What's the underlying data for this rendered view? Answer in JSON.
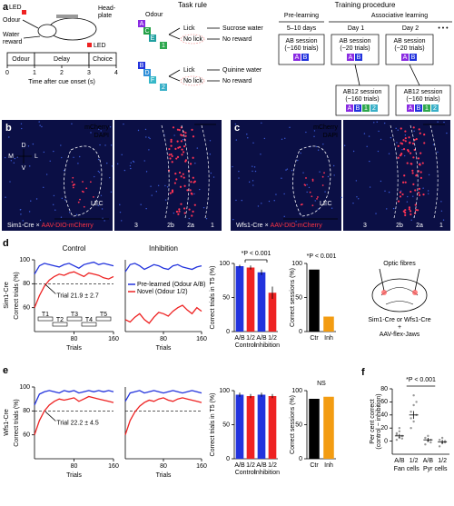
{
  "panel_a": {
    "label": "a",
    "schematic": {
      "led": "LED",
      "odour": "Odour",
      "head_plate": [
        "Head-",
        "plate"
      ],
      "water_reward": [
        "Water",
        "reward"
      ]
    },
    "timeline": {
      "segments": [
        "Odour",
        "Delay",
        "Choice"
      ],
      "led": "LED",
      "xlim": [
        0,
        4
      ],
      "xticks": [
        0,
        1,
        2,
        3,
        4
      ],
      "xlabel": "Time after cue onset (s)"
    },
    "task_rule": {
      "title": "Task rule",
      "odour": "Odour",
      "groups": [
        {
          "odours": [
            "A",
            "C",
            "E",
            "1"
          ],
          "responses": [
            "Lick",
            "No lick"
          ],
          "outcomes": [
            "Sucrose water",
            "No reward"
          ]
        },
        {
          "odours": [
            "B",
            "D",
            "F",
            "2"
          ],
          "responses": [
            "Lick",
            "No lick"
          ],
          "outcomes": [
            "Quinine water",
            "No reward"
          ]
        }
      ]
    },
    "training": {
      "title": "Training procedure",
      "phases": [
        "Pre-learning",
        "Associative learning"
      ],
      "periods": [
        "5–10 days",
        "Day 1",
        "Day 2"
      ],
      "more": "• • •",
      "sessions": [
        {
          "name": "AB session",
          "trials": "(~160 trials)",
          "odours": [
            "A",
            "B"
          ]
        },
        {
          "name": "AB session",
          "trials": "(~20 trials)",
          "odours": [
            "A",
            "B"
          ]
        },
        {
          "name": "AB session",
          "trials": "(~20 trials)",
          "odours": [
            "A",
            "B"
          ]
        },
        {
          "name": "AB12 session",
          "trials": "(~160 trials)",
          "odours": [
            "A",
            "B",
            "1",
            "2"
          ]
        },
        {
          "name": "AB12 session",
          "trials": "(~160 trials)",
          "odours": [
            "A",
            "B",
            "1",
            "2"
          ]
        }
      ]
    },
    "odour_colors": {
      "A": "#8a2be2",
      "B": "#2233dd",
      "C": "#22a046",
      "D": "#2f8fd8",
      "E": "#20a0a0",
      "F": "#35b7c8",
      "1": "#2fa84f",
      "2": "#3ab0c8"
    }
  },
  "panel_b": {
    "label": "b",
    "stains": [
      "mCherry",
      "DAPI"
    ],
    "compass": [
      "D",
      "M",
      "L",
      "V"
    ],
    "region": "LEC",
    "mouse_line": "Sim1-Cre",
    "cross": "×",
    "virus": "AAV-DIO-mCherry",
    "layers": [
      "3",
      "2b",
      "2a",
      "1"
    ]
  },
  "panel_c": {
    "label": "c",
    "stains": [
      "mCherry",
      "DAPI"
    ],
    "region": "LEC",
    "mouse_line": "Wfs1-Cre",
    "cross": "×",
    "virus": "AAV-DIO-mCherry",
    "layers": [
      "3",
      "2b",
      "2a",
      "1"
    ]
  },
  "panel_d": {
    "label": "d",
    "row": "Sim1-Cre",
    "control": {
      "type": "line",
      "title": "Control",
      "ylabel": "Correct trials (%)",
      "xlabel": "Trials",
      "x": [
        0,
        10,
        20,
        30,
        40,
        50,
        60,
        70,
        80,
        90,
        100,
        110,
        120,
        130,
        140,
        150,
        160
      ],
      "xlim": [
        0,
        160
      ],
      "xticks": [
        80,
        160
      ],
      "ylim": [
        40,
        100
      ],
      "yticks": [
        60,
        80,
        100
      ],
      "threshold": 80,
      "annotation": "Trial 21.9 ± 2.7",
      "inset_blocks": [
        "T1",
        "T2",
        "T3",
        "T4",
        "T5"
      ],
      "series": [
        {
          "color": "#2233dd",
          "values": [
            88,
            95,
            97,
            96,
            95,
            94,
            96,
            97,
            95,
            93,
            96,
            97,
            98,
            96,
            97,
            96,
            95
          ]
        },
        {
          "color": "#ee2222",
          "values": [
            60,
            70,
            78,
            83,
            86,
            88,
            87,
            89,
            90,
            88,
            86,
            89,
            88,
            87,
            85,
            84,
            86
          ]
        }
      ]
    },
    "inhibition": {
      "type": "line",
      "title": "Inhibition",
      "xlabel": "Trials",
      "x": [
        0,
        10,
        20,
        30,
        40,
        50,
        60,
        70,
        80,
        90,
        100,
        110,
        120,
        130,
        140,
        150,
        160
      ],
      "xlim": [
        0,
        160
      ],
      "xticks": [
        80,
        160
      ],
      "ylim": [
        40,
        100
      ],
      "series": [
        {
          "name": "Pre-learned (Odour A/B)",
          "color": "#2233dd",
          "values": [
            90,
            96,
            97,
            95,
            92,
            94,
            96,
            95,
            93,
            92,
            95,
            96,
            94,
            93,
            92,
            94,
            95
          ]
        },
        {
          "name": "Novel (Odour 1/2)",
          "color": "#ee2222",
          "values": [
            50,
            48,
            52,
            55,
            50,
            47,
            52,
            56,
            55,
            53,
            57,
            60,
            62,
            58,
            55,
            60,
            57
          ]
        }
      ]
    },
    "t5": {
      "type": "bar",
      "ylabel": "Correct trials in T5 (%)",
      "categories": [
        "A/B",
        "1/2",
        "A/B",
        "1/2"
      ],
      "groups": [
        "Control",
        "Inhibition"
      ],
      "values": [
        96,
        94,
        87,
        57
      ],
      "errors": [
        2,
        3,
        4,
        9
      ],
      "colors": [
        "#2233dd",
        "#ee2222",
        "#2233dd",
        "#ee2222"
      ],
      "ylim": [
        0,
        100
      ],
      "yticks": [
        0,
        50,
        100
      ],
      "annotation": "*P < 0.001"
    },
    "sessions": {
      "type": "bar",
      "ylabel": "Correct sessions (%)",
      "categories": [
        "Ctr",
        "Inh"
      ],
      "values": [
        91,
        22
      ],
      "colors": [
        "#000000",
        "#f39c12"
      ],
      "ylim": [
        0,
        100
      ],
      "yticks": [
        0,
        50,
        100
      ],
      "annotation": "*P < 0.001"
    },
    "schematic": {
      "title": "Optic fibres",
      "lines": "Sim1-Cre or Wfs1-Cre",
      "plus": "+",
      "virus": "AAV-flex-Jaws"
    }
  },
  "panel_e": {
    "label": "e",
    "row": "Wfs1-Cre",
    "control": {
      "type": "line",
      "ylabel": "Correct trials (%)",
      "xlabel": "Trials",
      "x": [
        0,
        10,
        20,
        30,
        40,
        50,
        60,
        70,
        80,
        90,
        100,
        110,
        120,
        130,
        140,
        150,
        160
      ],
      "xlim": [
        0,
        160
      ],
      "xticks": [
        80,
        160
      ],
      "ylim": [
        40,
        100
      ],
      "yticks": [
        60,
        80,
        100
      ],
      "threshold": 80,
      "annotation": "Trial 22.2 ± 4.5",
      "series": [
        {
          "color": "#2233dd",
          "values": [
            85,
            94,
            96,
            97,
            96,
            95,
            97,
            96,
            97,
            95,
            96,
            97,
            96,
            97,
            96,
            97,
            96
          ]
        },
        {
          "color": "#ee2222",
          "values": [
            60,
            72,
            80,
            85,
            88,
            90,
            89,
            90,
            91,
            88,
            90,
            92,
            91,
            90,
            89,
            88,
            87
          ]
        }
      ]
    },
    "inhibition": {
      "type": "line",
      "xlabel": "Trials",
      "x": [
        0,
        10,
        20,
        30,
        40,
        50,
        60,
        70,
        80,
        90,
        100,
        110,
        120,
        130,
        140,
        150,
        160
      ],
      "xlim": [
        0,
        160
      ],
      "xticks": [
        80,
        160
      ],
      "ylim": [
        40,
        100
      ],
      "threshold": 80,
      "series": [
        {
          "color": "#2233dd",
          "values": [
            88,
            95,
            96,
            97,
            95,
            96,
            97,
            96,
            95,
            96,
            97,
            96,
            95,
            96,
            97,
            96,
            95
          ]
        },
        {
          "color": "#ee2222",
          "values": [
            60,
            72,
            79,
            84,
            87,
            89,
            88,
            90,
            91,
            89,
            88,
            90,
            91,
            90,
            89,
            88,
            87
          ]
        }
      ]
    },
    "t5": {
      "type": "bar",
      "ylabel": "Correct trials in T5 (%)",
      "categories": [
        "A/B",
        "1/2",
        "A/B",
        "1/2"
      ],
      "groups": [
        "Control",
        "Inhibition"
      ],
      "values": [
        94,
        92,
        94,
        92
      ],
      "errors": [
        3,
        3,
        3,
        3
      ],
      "colors": [
        "#2233dd",
        "#ee2222",
        "#2233dd",
        "#ee2222"
      ],
      "ylim": [
        0,
        100
      ],
      "yticks": [
        0,
        50,
        100
      ]
    },
    "sessions": {
      "type": "bar",
      "ylabel": "Correct sessions (%)",
      "categories": [
        "Ctr",
        "Inh"
      ],
      "values": [
        88,
        91
      ],
      "colors": [
        "#000000",
        "#f39c12"
      ],
      "ylim": [
        0,
        100
      ],
      "yticks": [
        0,
        50,
        100
      ],
      "annotation": "NS"
    }
  },
  "panel_f": {
    "label": "f",
    "type": "dot",
    "ylabel": [
      "Per cent correct",
      "(control − inhibition)"
    ],
    "categories": [
      "A/B",
      "1/2",
      "A/B",
      "1/2"
    ],
    "groups": [
      "Fan cells",
      "Pyr cells"
    ],
    "colors": [
      "#000000",
      "#ee2222",
      "#000000",
      "#ee2222"
    ],
    "means": [
      8,
      40,
      2,
      -1
    ],
    "errors": [
      3,
      6,
      3,
      3
    ],
    "points": [
      [
        2,
        5,
        8,
        12,
        15,
        4,
        10,
        20
      ],
      [
        20,
        30,
        40,
        45,
        55,
        60,
        35,
        70
      ],
      [
        -5,
        0,
        2,
        5,
        8,
        -2
      ],
      [
        -8,
        -3,
        0,
        2,
        5,
        -2
      ]
    ],
    "ylim": [
      -20,
      80
    ],
    "yticks": [
      0,
      20,
      40,
      60,
      80
    ],
    "annotation": "*P < 0.001"
  }
}
